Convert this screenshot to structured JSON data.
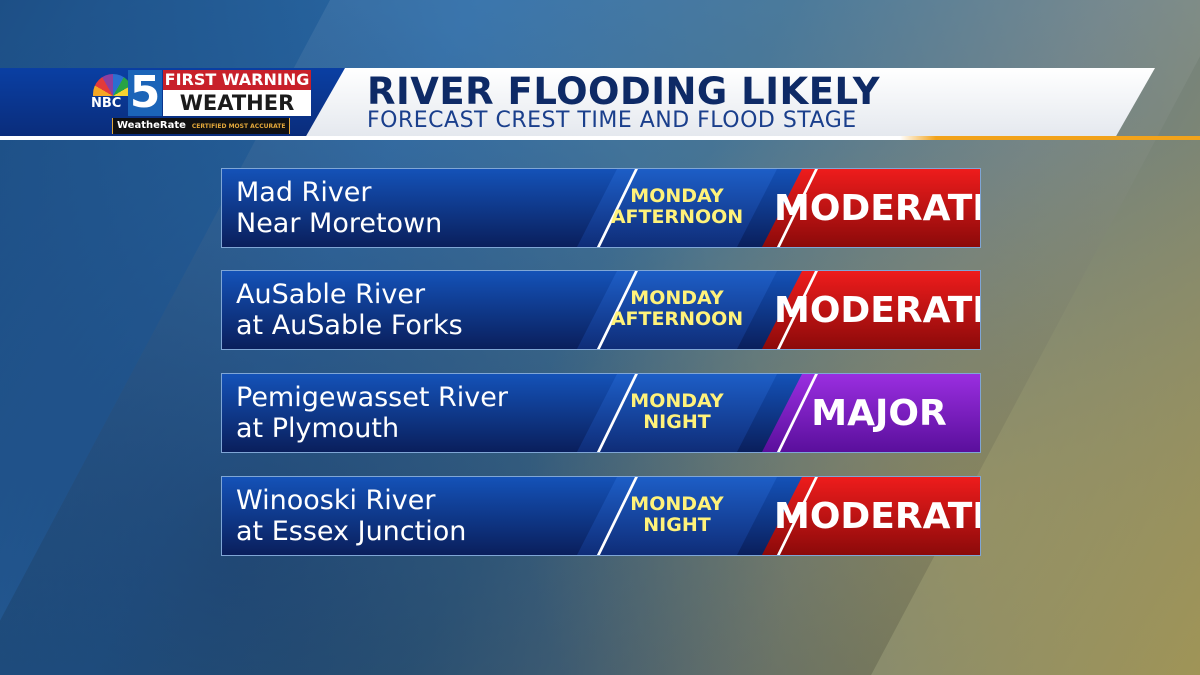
{
  "header": {
    "title": "RIVER FLOODING LIKELY",
    "subtitle": "FORECAST CREST TIME AND FLOOD STAGE"
  },
  "logo": {
    "network": "NBC",
    "channel": "5",
    "line1": "FIRST WARNING",
    "line2": "WEATHER",
    "badge": "WeatheRate",
    "badge_tag": "CERTIFIED MOST ACCURATE"
  },
  "colors": {
    "moderate": "#c80d10",
    "major": "#7a18c9",
    "time_text": "#fff27a"
  },
  "rows": [
    {
      "line1": "Mad River",
      "line2": "Near Moretown",
      "time1": "MONDAY",
      "time2": "AFTERNOON",
      "stage": "MODERATE"
    },
    {
      "line1": "AuSable River",
      "line2": "at AuSable Forks",
      "time1": "MONDAY",
      "time2": "AFTERNOON",
      "stage": "MODERATE"
    },
    {
      "line1": "Pemigewasset River",
      "line2": "at Plymouth",
      "time1": "MONDAY",
      "time2": "NIGHT",
      "stage": "MAJOR"
    },
    {
      "line1": "Winooski River",
      "line2": "at Essex Junction",
      "time1": "MONDAY",
      "time2": "NIGHT",
      "stage": "MODERATE"
    }
  ]
}
